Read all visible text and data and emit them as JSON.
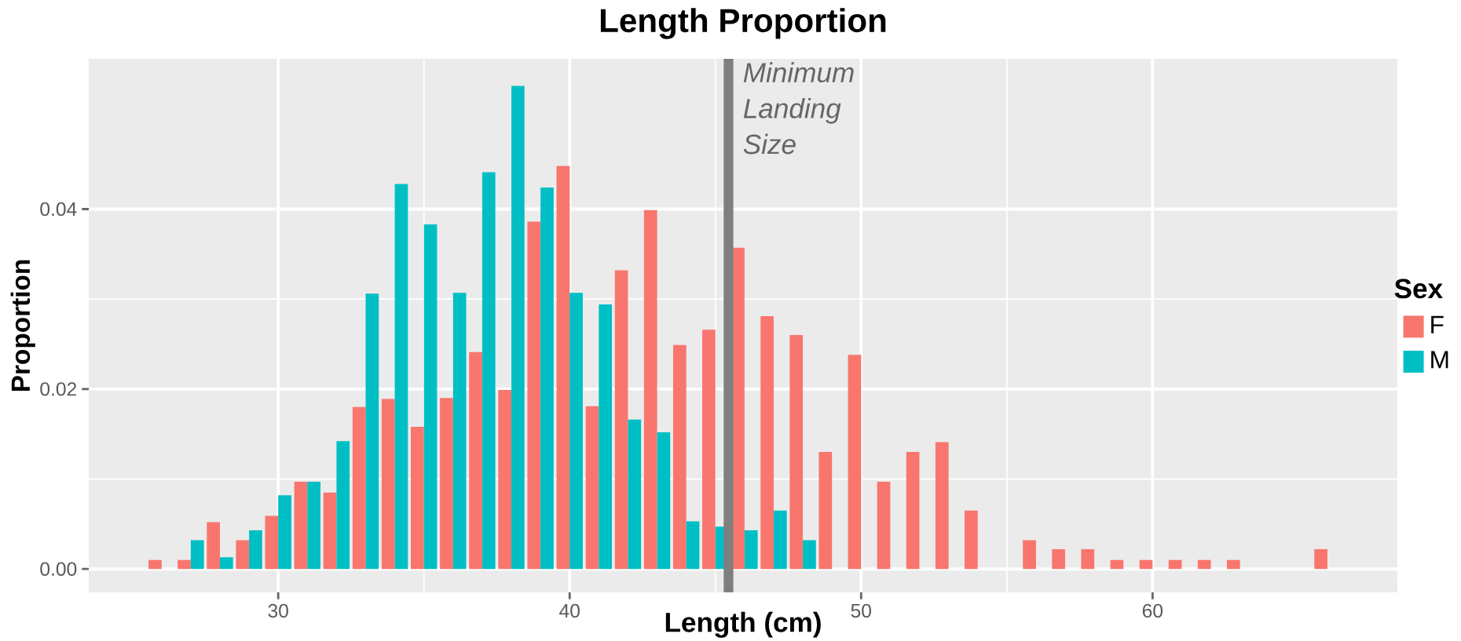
{
  "chart_data": {
    "type": "bar",
    "title": "Length Proportion",
    "xlabel": "Length (cm)",
    "ylabel": "Proportion",
    "legend_title": "Sex",
    "x": [
      26,
      27,
      28,
      29,
      30,
      31,
      32,
      33,
      34,
      35,
      36,
      37,
      38,
      39,
      40,
      41,
      42,
      43,
      44,
      45,
      46,
      47,
      48,
      49,
      50,
      51,
      52,
      53,
      54,
      55,
      56,
      57,
      58,
      59,
      60,
      61,
      62,
      63,
      64,
      65,
      66
    ],
    "series": [
      {
        "name": "F",
        "color": "#f8766d",
        "values": [
          0.001,
          0.001,
          0.0052,
          0.0032,
          0.0059,
          0.0097,
          0.0085,
          0.018,
          0.0189,
          0.0158,
          0.019,
          0.0241,
          0.0199,
          0.0386,
          0.0448,
          0.0181,
          0.0332,
          0.0399,
          0.0249,
          0.0266,
          0.0357,
          0.0281,
          0.026,
          0.013,
          0.0238,
          0.0097,
          0.013,
          0.0141,
          0.0065,
          null,
          0.0032,
          0.0022,
          0.0022,
          0.001,
          0.001,
          0.001,
          0.001,
          0.001,
          null,
          null,
          0.0022
        ]
      },
      {
        "name": "M",
        "color": "#00bfc4",
        "values": [
          null,
          0.0032,
          0.0013,
          0.0043,
          0.0082,
          0.0097,
          0.0142,
          0.0306,
          0.0428,
          0.0383,
          0.0307,
          0.0441,
          0.0537,
          0.0424,
          0.0307,
          0.0294,
          0.0166,
          0.0152,
          0.0053,
          0.0047,
          0.0043,
          0.0065,
          0.0032,
          null,
          null,
          null,
          null,
          null,
          null,
          null,
          null,
          null,
          null,
          null,
          null,
          null,
          null,
          null,
          null,
          null,
          null
        ]
      }
    ],
    "xlim": [
      23.5,
      68.4
    ],
    "ylim": [
      -0.0026,
      0.0567
    ],
    "xticks": [
      30,
      40,
      50,
      60
    ],
    "yticks": [
      {
        "value": 0,
        "label": "0.00"
      },
      {
        "value": 0.02,
        "label": "0.02"
      },
      {
        "value": 0.04,
        "label": "0.04"
      }
    ],
    "ref_lines": [
      {
        "axis": "x",
        "value": 45.45,
        "label": "Minimum Landing Size",
        "color": "#7f7f7f"
      }
    ],
    "grid": true,
    "legend": "right"
  }
}
